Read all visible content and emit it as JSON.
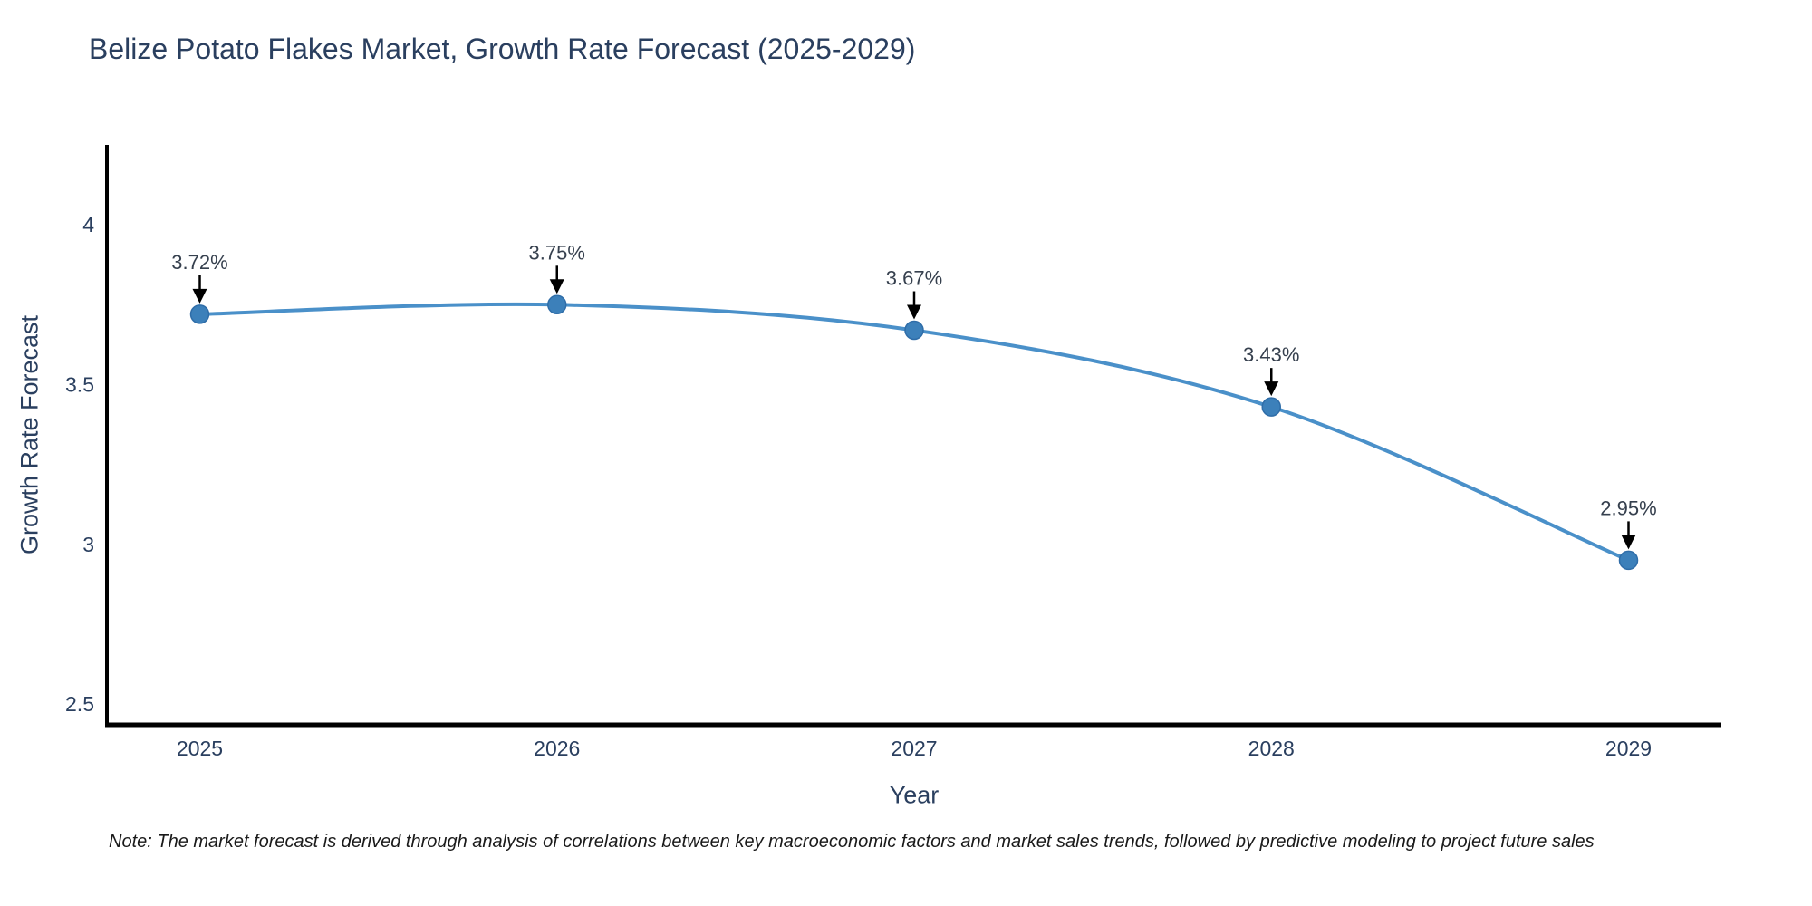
{
  "chart_data": {
    "type": "line",
    "title": "Belize Potato Flakes Market, Growth Rate Forecast (2025-2029)",
    "xlabel": "Year",
    "ylabel": "Growth Rate Forecast",
    "x": [
      2025,
      2026,
      2027,
      2028,
      2029
    ],
    "x_tick_labels": [
      "2025",
      "2026",
      "2027",
      "2028",
      "2029"
    ],
    "values": [
      3.72,
      3.75,
      3.67,
      3.43,
      2.95
    ],
    "point_labels": [
      "3.72%",
      "3.75%",
      "3.67%",
      "3.43%",
      "2.95%"
    ],
    "y_ticks": [
      2.5,
      3,
      3.5,
      4
    ],
    "y_tick_labels": [
      "2.5",
      "3",
      "3.5",
      "4"
    ],
    "ylim": [
      2.435,
      4.25
    ],
    "xlim": [
      2024.74,
      2029.26
    ],
    "grid": false,
    "legend_position": "none",
    "line_shape": "spline",
    "annotations_have_arrows": true
  },
  "note": "Note: The market forecast is derived through analysis of correlations between key macroeconomic factors and market sales trends, followed by predictive modeling to project future sales",
  "colors": {
    "title_text": "#2a3f5f",
    "axis_text": "#2a3f5f",
    "annotation_text": "#36404e",
    "line": "#4a90c9",
    "marker": "#3c80ba",
    "marker_border": "#2f6da8",
    "arrow": "#000000",
    "spine": "#000000",
    "background": "#ffffff",
    "note_text": "#1a1a1a"
  }
}
